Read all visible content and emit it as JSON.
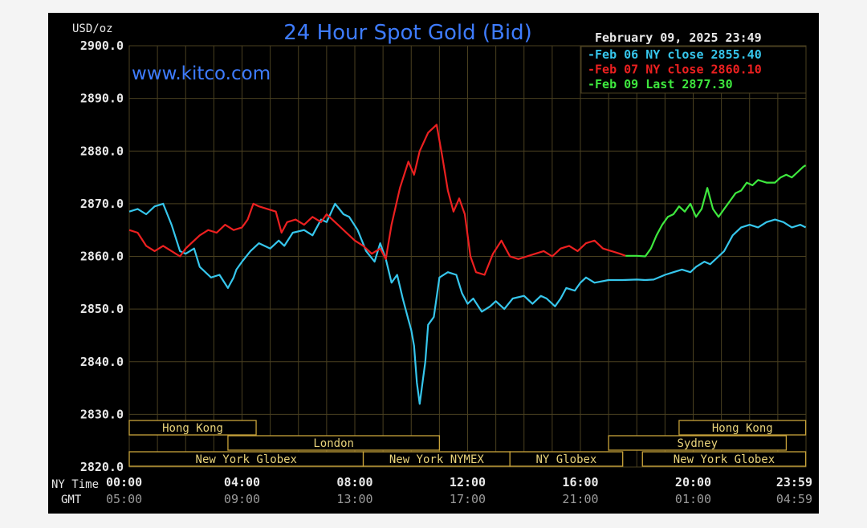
{
  "colors": {
    "background": "#000000",
    "grid": "#4a4020",
    "axis_text": "#e8e8e8",
    "gmt_text": "#9a9a9a",
    "title": "#3e7cff",
    "feb06": "#36c6ec",
    "feb07": "#ec2020",
    "feb09": "#3ee83e",
    "session_border": "#c8a33a",
    "session_text": "#e8d27a"
  },
  "chart_data": {
    "type": "line",
    "title": "24 Hour Spot Gold (Bid)",
    "watermark": "www.kitco.com",
    "timestamp": "February 09, 2025 23:49",
    "ylabel": "USD/oz",
    "ylim": [
      2820,
      2900
    ],
    "yticks": [
      "2900.0",
      "2890.0",
      "2880.0",
      "2870.0",
      "2860.0",
      "2850.0",
      "2840.0",
      "2830.0",
      "2820.0"
    ],
    "xlim": [
      0,
      24
    ],
    "x_row_labels": [
      "NY Time",
      "GMT"
    ],
    "xticks_ny": [
      "00:00",
      "04:00",
      "08:00",
      "12:00",
      "16:00",
      "20:00",
      "23:59"
    ],
    "xticks_gmt": [
      "05:00",
      "09:00",
      "13:00",
      "17:00",
      "21:00",
      "01:00",
      "04:59"
    ],
    "grid": true,
    "legend_position": "top-right",
    "legend": [
      {
        "prefix": "-Feb 06 NY close",
        "value": "2855.40",
        "series": "feb06"
      },
      {
        "prefix": "-Feb 07 NY close",
        "value": "2860.10",
        "series": "feb07"
      },
      {
        "prefix": "-Feb 09 Last",
        "value": "2877.30",
        "series": "feb09"
      }
    ],
    "series": [
      {
        "key": "feb06",
        "x": [
          0,
          0.3,
          0.6,
          0.9,
          1.2,
          1.5,
          1.8,
          2.0,
          2.3,
          2.5,
          2.9,
          3.2,
          3.5,
          3.7,
          3.8,
          4.0,
          4.3,
          4.6,
          5.0,
          5.3,
          5.5,
          5.8,
          6.2,
          6.5,
          6.8,
          7.0,
          7.3,
          7.6,
          7.8,
          8.1,
          8.4,
          8.7,
          8.9,
          9.1,
          9.3,
          9.5,
          9.7,
          9.9,
          10.0,
          10.1,
          10.2,
          10.3,
          10.4,
          10.5,
          10.6,
          10.8,
          11.0,
          11.3,
          11.6,
          11.8,
          12.0,
          12.2,
          12.5,
          12.8,
          13.0,
          13.3,
          13.6,
          14.0,
          14.3,
          14.6,
          14.8,
          15.1,
          15.3,
          15.5,
          15.8,
          16.0,
          16.2,
          16.5,
          17.0,
          17.5,
          18.0,
          18.3,
          18.6,
          19.0,
          19.3,
          19.6,
          19.9,
          20.1,
          20.4,
          20.6,
          20.9,
          21.1,
          21.4,
          21.7,
          22.0,
          22.3,
          22.6,
          22.9,
          23.2,
          23.5,
          23.8,
          23.99
        ],
        "values": [
          2868.5,
          2869.0,
          2868.0,
          2869.5,
          2870.0,
          2866.0,
          2861.0,
          2860.5,
          2861.5,
          2858.0,
          2856.0,
          2856.5,
          2854.0,
          2856.0,
          2857.5,
          2859.0,
          2861.0,
          2862.5,
          2861.5,
          2863.0,
          2862.0,
          2864.5,
          2865.0,
          2864.0,
          2867.0,
          2866.5,
          2870.0,
          2868.0,
          2867.5,
          2865.0,
          2861.0,
          2859.0,
          2862.5,
          2859.5,
          2855.0,
          2856.5,
          2852.0,
          2848.0,
          2846.0,
          2843.0,
          2836.0,
          2832.0,
          2836.0,
          2840.0,
          2847.0,
          2848.5,
          2856.0,
          2857.0,
          2856.5,
          2853.0,
          2851.0,
          2852.0,
          2849.5,
          2850.5,
          2851.5,
          2850.0,
          2852.0,
          2852.5,
          2851.0,
          2852.5,
          2852.0,
          2850.5,
          2852.0,
          2854.0,
          2853.5,
          2855.0,
          2856.0,
          2855.0,
          2855.5,
          2855.5,
          2855.6,
          2855.5,
          2855.6,
          2856.5,
          2857.0,
          2857.5,
          2857.0,
          2858.0,
          2859.0,
          2858.5,
          2860.0,
          2861.0,
          2864.0,
          2865.5,
          2866.0,
          2865.5,
          2866.5,
          2867.0,
          2866.5,
          2865.5,
          2866.0,
          2865.5
        ]
      },
      {
        "key": "feb07",
        "x": [
          0,
          0.3,
          0.6,
          0.9,
          1.2,
          1.5,
          1.8,
          2.0,
          2.2,
          2.5,
          2.8,
          3.1,
          3.4,
          3.7,
          4.0,
          4.2,
          4.4,
          4.6,
          4.9,
          5.2,
          5.4,
          5.6,
          5.9,
          6.2,
          6.5,
          6.8,
          7.0,
          7.2,
          7.4,
          7.7,
          8.0,
          8.3,
          8.6,
          8.9,
          9.1,
          9.3,
          9.6,
          9.9,
          10.1,
          10.3,
          10.6,
          10.9,
          11.1,
          11.3,
          11.5,
          11.7,
          11.9,
          12.1,
          12.3,
          12.6,
          12.9,
          13.2,
          13.5,
          13.8,
          14.1,
          14.4,
          14.7,
          15.0,
          15.3,
          15.6,
          15.9,
          16.2,
          16.5,
          16.8,
          17.1,
          17.4,
          17.6
        ],
        "values": [
          2865.0,
          2864.5,
          2862.0,
          2861.0,
          2862.0,
          2861.0,
          2860.0,
          2861.5,
          2862.5,
          2864.0,
          2865.0,
          2864.5,
          2866.0,
          2865.0,
          2865.5,
          2867.0,
          2870.0,
          2869.5,
          2869.0,
          2868.5,
          2864.5,
          2866.5,
          2867.0,
          2866.0,
          2867.5,
          2866.5,
          2868.0,
          2867.0,
          2866.0,
          2864.5,
          2863.0,
          2862.0,
          2860.5,
          2861.5,
          2859.5,
          2866.0,
          2873.0,
          2878.0,
          2875.5,
          2880.0,
          2883.5,
          2885.0,
          2879.0,
          2872.5,
          2868.5,
          2871.0,
          2868.0,
          2860.0,
          2857.0,
          2856.5,
          2860.5,
          2863.0,
          2860.0,
          2859.5,
          2860.0,
          2860.5,
          2861.0,
          2860.0,
          2861.5,
          2862.0,
          2861.0,
          2862.5,
          2863.0,
          2861.5,
          2861.0,
          2860.5,
          2860.1
        ]
      },
      {
        "key": "feb09",
        "x": [
          17.6,
          18.0,
          18.3,
          18.5,
          18.7,
          18.9,
          19.1,
          19.3,
          19.5,
          19.7,
          19.9,
          20.1,
          20.3,
          20.5,
          20.7,
          20.9,
          21.1,
          21.3,
          21.5,
          21.7,
          21.9,
          22.1,
          22.3,
          22.6,
          22.9,
          23.1,
          23.3,
          23.5,
          23.7,
          23.9,
          23.99
        ],
        "values": [
          2860.1,
          2860.1,
          2860.0,
          2861.5,
          2864.0,
          2866.0,
          2867.5,
          2868.0,
          2869.5,
          2868.5,
          2870.0,
          2867.5,
          2869.0,
          2873.0,
          2869.0,
          2867.5,
          2869.0,
          2870.5,
          2872.0,
          2872.5,
          2874.0,
          2873.5,
          2874.5,
          2874.0,
          2874.0,
          2875.0,
          2875.5,
          2875.0,
          2876.0,
          2877.0,
          2877.3
        ]
      }
    ],
    "sessions": [
      {
        "label": "Hong Kong",
        "start": 0,
        "end": 4.5,
        "row": 0
      },
      {
        "label": "London",
        "start": 3.5,
        "end": 11.0,
        "row": 1
      },
      {
        "label": "New York Globex",
        "start": 0,
        "end": 8.3,
        "row": 2
      },
      {
        "label": "New York NYMEX",
        "start": 8.3,
        "end": 13.5,
        "row": 2
      },
      {
        "label": "NY Globex",
        "start": 13.5,
        "end": 17.5,
        "row": 2
      },
      {
        "label": "Hong Kong",
        "start": 19.5,
        "end": 23.99,
        "row": 0
      },
      {
        "label": "Sydney",
        "start": 17.0,
        "end": 23.3,
        "row": 1
      },
      {
        "label": "New York Globex",
        "start": 18.2,
        "end": 23.99,
        "row": 2
      }
    ]
  }
}
